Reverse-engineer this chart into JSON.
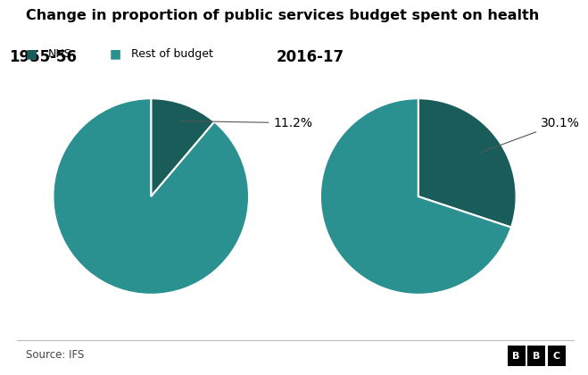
{
  "title": "Change in proportion of public services budget spent on health",
  "legend_labels": [
    "NHS",
    "Rest of budget"
  ],
  "nhs_color": "#1a5c5a",
  "rest_color": "#2a9090",
  "background_color": "#ffffff",
  "pie1_label": "1955-56",
  "pie2_label": "2016-17",
  "pie1_nhs_pct": 11.2,
  "pie2_nhs_pct": 30.1,
  "source_text": "Source: IFS",
  "bbc_text": "BBC",
  "bottom_bar_color": "#dddddd"
}
